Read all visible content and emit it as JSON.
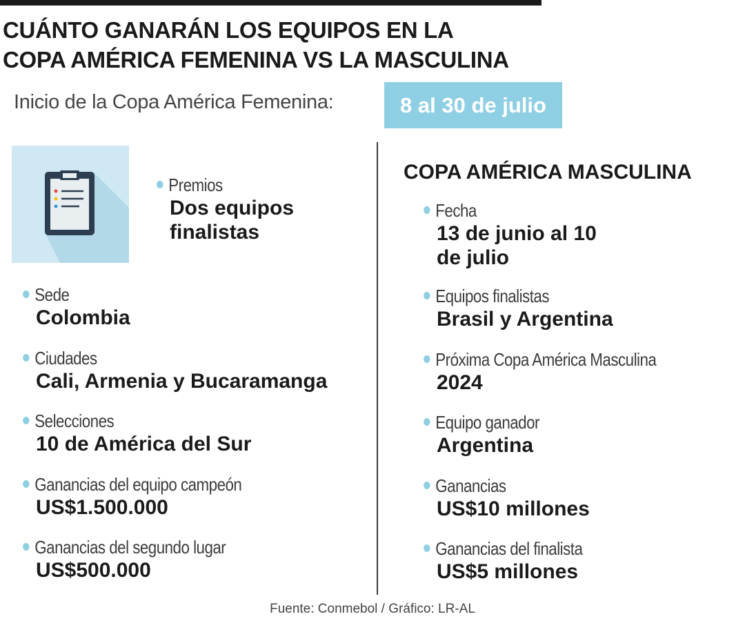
{
  "title": {
    "line1": "CUÁNTO GANARÁN LOS EQUIPOS EN LA",
    "line2": "COPA AMÉRICA FEMENINA VS LA MASCULINA"
  },
  "start": {
    "label": "Inicio de la Copa América Femenina:",
    "date": "8 al 30 de julio"
  },
  "icon": "clipboard-icon",
  "colors": {
    "accent": "#8fcfe3",
    "icon_bg": "#cfe8f3",
    "text": "#1a1a1a"
  },
  "femenina": {
    "premios": {
      "label": "Premios",
      "value_line1": "Dos equipos",
      "value_line2": "finalistas"
    },
    "items": [
      {
        "label": "Sede",
        "value": "Colombia"
      },
      {
        "label": "Ciudades",
        "value": "Cali, Armenia y Bucaramanga"
      },
      {
        "label": "Selecciones",
        "value": "10 de América del Sur"
      },
      {
        "label": "Ganancias del equipo campeón",
        "value": "US$1.500.000"
      },
      {
        "label": "Ganancias del segundo lugar",
        "value": "US$500.000"
      }
    ]
  },
  "masculina": {
    "heading": "COPA AMÉRICA MASCULINA",
    "fecha": {
      "label": "Fecha",
      "value_line1": "13 de junio al 10",
      "value_line2": "de julio"
    },
    "items": [
      {
        "label": "Equipos finalistas",
        "value": "Brasil y Argentina"
      },
      {
        "label": "Próxima Copa América Masculina",
        "value": "2024"
      },
      {
        "label": "Equipo ganador",
        "value": "Argentina"
      },
      {
        "label": "Ganancias",
        "value": "US$10 millones"
      },
      {
        "label": "Ganancias del finalista",
        "value": "US$5 millones"
      }
    ]
  },
  "source": "Fuente: Conmebol / Gráfico: LR-AL"
}
